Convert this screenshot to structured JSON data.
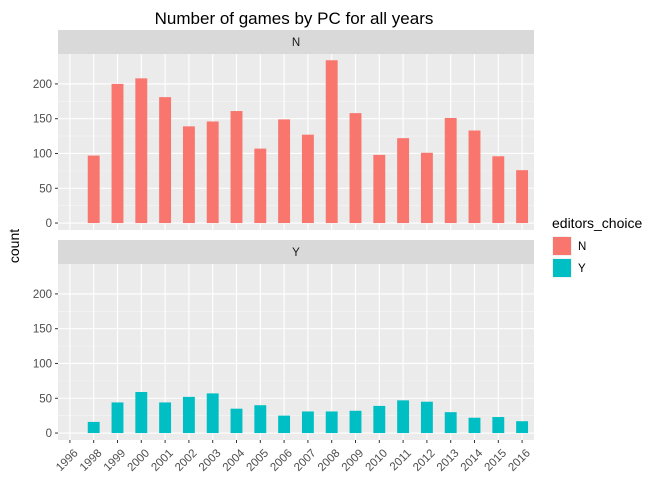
{
  "chart_data": {
    "type": "bar",
    "title": "Number of games by PC for all years",
    "xlabel": "",
    "ylabel": "count",
    "categories": [
      "1996",
      "1998",
      "1999",
      "2000",
      "2001",
      "2002",
      "2003",
      "2004",
      "2005",
      "2006",
      "2007",
      "2008",
      "2009",
      "2010",
      "2011",
      "2012",
      "2013",
      "2014",
      "2015",
      "2016"
    ],
    "ylim": [
      0,
      240
    ],
    "yticks": [
      0,
      50,
      100,
      150,
      200
    ],
    "grid": true,
    "legend": {
      "title": "editors_choice",
      "position": "right",
      "items": [
        {
          "label": "N",
          "color": "#F8766D"
        },
        {
          "label": "Y",
          "color": "#00BFC4"
        }
      ]
    },
    "facets": [
      {
        "label": "N",
        "color": "#F8766D",
        "values": [
          null,
          97,
          200,
          208,
          181,
          139,
          146,
          161,
          107,
          149,
          127,
          234,
          158,
          98,
          122,
          101,
          151,
          133,
          96,
          76
        ]
      },
      {
        "label": "Y",
        "color": "#00BFC4",
        "values": [
          null,
          16,
          44,
          59,
          44,
          52,
          57,
          35,
          40,
          25,
          31,
          31,
          32,
          39,
          47,
          45,
          30,
          22,
          23,
          17
        ]
      }
    ]
  }
}
